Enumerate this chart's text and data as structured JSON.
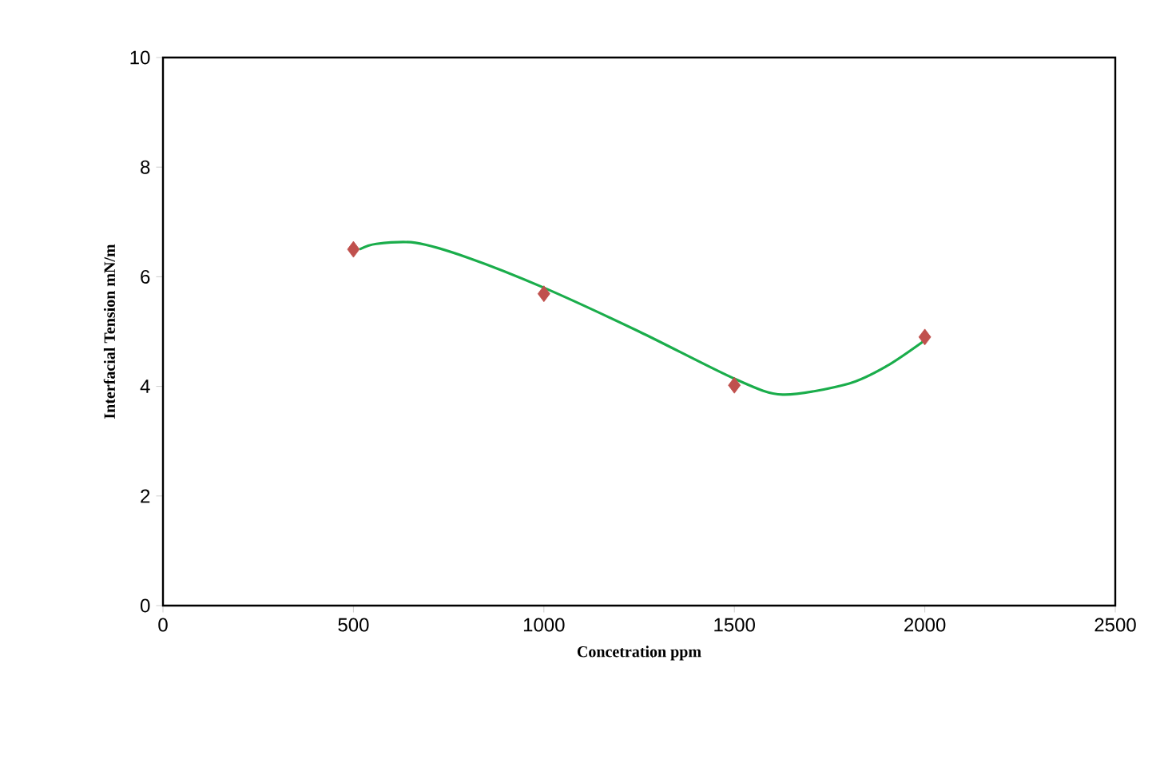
{
  "chart_data": {
    "type": "scatter",
    "xlabel": "Concetration  ppm",
    "ylabel": "Interfacial  Tension mN/m",
    "xlim": [
      0,
      2500
    ],
    "ylim": [
      0,
      10
    ],
    "xticks": [
      0,
      500,
      1000,
      1500,
      2000,
      2500
    ],
    "yticks": [
      0,
      2,
      4,
      6,
      8,
      10
    ],
    "grid": false,
    "series": [
      {
        "type": "line",
        "color": "#1aad4b",
        "marker": "none",
        "x": [
          516,
          560,
          663,
          800,
          1000,
          1250,
          1500,
          1627,
          1800,
          1900,
          2000
        ],
        "values": [
          6.5,
          6.6,
          6.62,
          6.35,
          5.8,
          5.0,
          4.14,
          3.85,
          4.05,
          4.37,
          4.84
        ]
      },
      {
        "color": "#c0504d",
        "marker": "diamond",
        "x": [
          500,
          1000,
          1500,
          2000
        ],
        "values": [
          6.5,
          5.69,
          4.02,
          4.9
        ]
      }
    ]
  }
}
